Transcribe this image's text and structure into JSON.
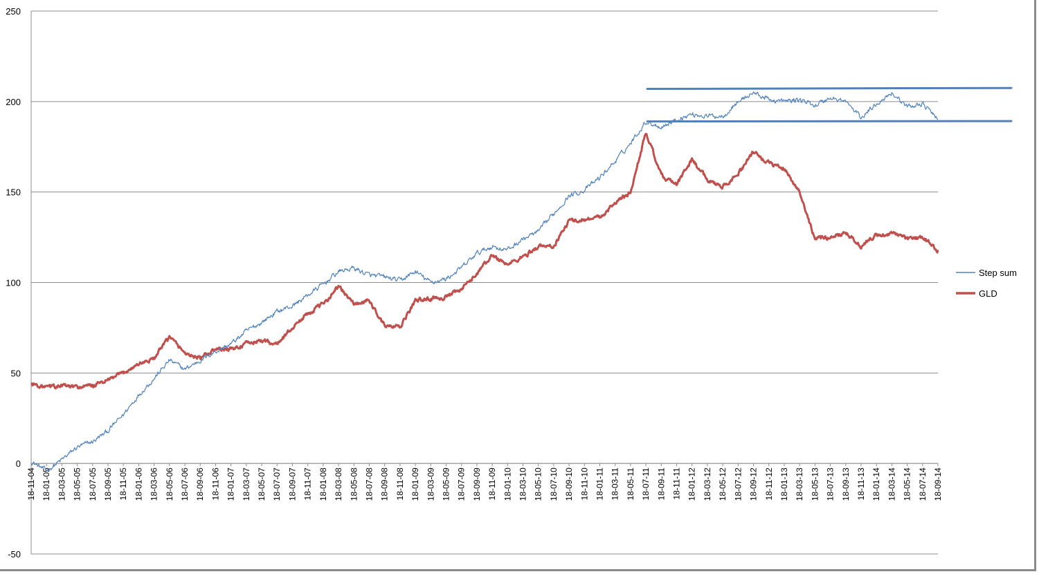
{
  "chart_data": {
    "type": "line",
    "title": "",
    "xlabel": "",
    "ylabel": "",
    "ylim": [
      -50,
      250
    ],
    "yticks": [
      -50,
      0,
      50,
      100,
      150,
      200,
      250
    ],
    "grid": "horizontal",
    "legend_position": "right",
    "categories": [
      "18-11-04",
      "18-01-05",
      "18-03-05",
      "18-05-05",
      "18-07-05",
      "18-09-05",
      "18-11-05",
      "18-01-06",
      "18-03-06",
      "18-05-06",
      "18-07-06",
      "18-09-06",
      "18-11-06",
      "18-01-07",
      "18-03-07",
      "18-05-07",
      "18-07-07",
      "18-09-07",
      "18-11-07",
      "18-01-08",
      "18-03-08",
      "18-05-08",
      "18-07-08",
      "18-09-08",
      "18-11-08",
      "18-01-09",
      "18-03-09",
      "18-05-09",
      "18-07-09",
      "18-09-09",
      "18-11-09",
      "18-01-10",
      "18-03-10",
      "18-05-10",
      "18-07-10",
      "18-09-10",
      "18-11-10",
      "18-01-11",
      "18-03-11",
      "18-05-11",
      "18-07-11",
      "18-09-11",
      "18-11-11",
      "18-01-12",
      "18-03-12",
      "18-05-12",
      "18-07-12",
      "18-09-12",
      "18-11-12",
      "18-01-13",
      "18-03-13",
      "18-05-13",
      "18-07-13",
      "18-09-13",
      "18-11-13",
      "18-01-14",
      "18-03-14",
      "18-05-14",
      "18-07-14",
      "18-09-14"
    ],
    "series": [
      {
        "name": "Step sum",
        "color": "#4f81bd",
        "values": [
          1,
          -4,
          2,
          9,
          12,
          18,
          27,
          38,
          47,
          57,
          52,
          57,
          62,
          66,
          73,
          78,
          84,
          87,
          93,
          99,
          106,
          108,
          104,
          103,
          101,
          106,
          100,
          102,
          108,
          116,
          120,
          118,
          124,
          128,
          138,
          148,
          151,
          158,
          167,
          177,
          189,
          186,
          190,
          193,
          192,
          192,
          200,
          205,
          201,
          200,
          201,
          198,
          202,
          200,
          191,
          199,
          205,
          197,
          199,
          190
        ]
      },
      {
        "name": "GLD",
        "color": "#c0504d",
        "values": [
          44,
          42,
          43,
          42,
          43,
          46,
          50,
          55,
          58,
          70,
          61,
          58,
          63,
          63,
          66,
          68,
          66,
          75,
          83,
          88,
          98,
          88,
          90,
          76,
          75,
          90,
          91,
          92,
          96,
          105,
          115,
          110,
          114,
          120,
          120,
          134,
          135,
          136,
          144,
          150,
          183,
          159,
          154,
          168,
          157,
          153,
          160,
          172,
          166,
          163,
          150,
          124,
          125,
          128,
          120,
          126,
          127,
          124,
          125,
          118
        ]
      }
    ],
    "annotations": [
      {
        "type": "horizontal-line",
        "color": "#4f81bd",
        "y_start": 207,
        "y_end": 207.5,
        "from_category": "18-07-11"
      },
      {
        "type": "horizontal-line",
        "color": "#4f81bd",
        "y_start": 189,
        "y_end": 189.2,
        "from_category": "18-07-11"
      }
    ]
  }
}
